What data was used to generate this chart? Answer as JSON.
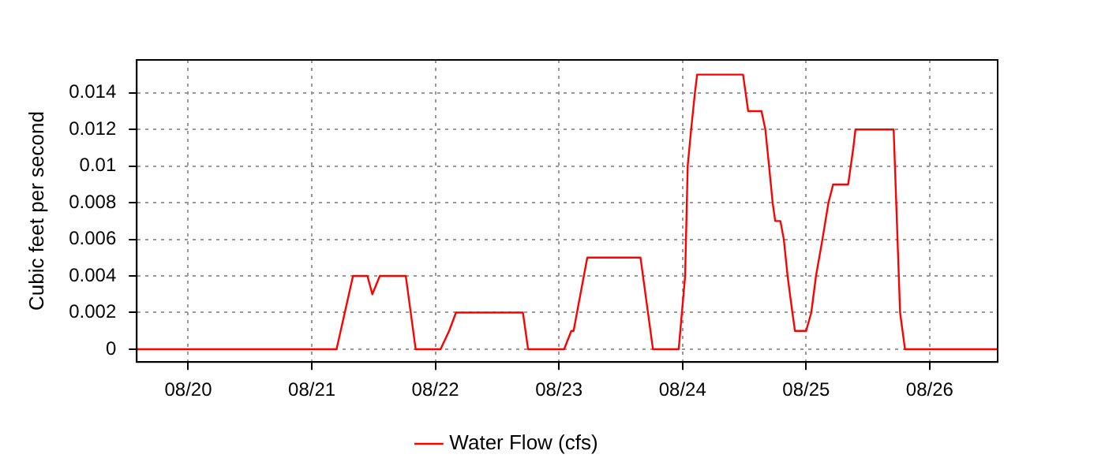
{
  "chart_data": {
    "type": "line",
    "ylabel": "Cubic feet per second",
    "x": [
      "--08-19T14:00",
      "--08-21T04:48",
      "--08-21T08:00",
      "--08-21T10:48",
      "--08-21T11:45",
      "--08-21T13:12",
      "--08-21T18:15",
      "--08-21T20:10",
      "--08-22T01:00",
      "--08-22T02:40",
      "--08-22T04:00",
      "--08-22T17:00",
      "--08-22T18:00",
      "--08-23T01:00",
      "--08-23T02:24",
      "--08-23T02:50",
      "--08-23T05:30",
      "--08-23T15:50",
      "--08-23T18:15",
      "--08-23T23:15",
      "--08-24T00:30",
      "--08-24T01:00",
      "--08-24T01:40",
      "--08-24T02:24",
      "--08-24T02:50",
      "--08-24T11:45",
      "--08-24T12:45",
      "--08-24T15:20",
      "--08-24T16:05",
      "--08-24T16:48",
      "--08-24T17:30",
      "--08-24T18:00",
      "--08-24T19:00",
      "--08-24T19:40",
      "--08-24T20:24",
      "--08-24T21:20",
      "--08-24T21:50",
      "--08-25T00:00",
      "--08-25T01:00",
      "--08-25T01:55",
      "--08-25T03:10",
      "--08-25T04:20",
      "--08-25T05:15",
      "--08-25T08:10",
      "--08-25T09:10",
      "--08-25T09:35",
      "--08-25T17:00",
      "--08-25T17:30",
      "--08-25T18:15",
      "--08-25T19:12",
      "--08-26T13:12"
    ],
    "series": [
      {
        "name": "Water Flow (cfs)",
        "color": "#ff0000",
        "values": [
          0,
          0,
          0.004,
          0.004,
          0.003,
          0.004,
          0.004,
          0,
          0,
          0.001,
          0.002,
          0.002,
          0,
          0,
          0.001,
          0.001,
          0.005,
          0.005,
          0,
          0,
          0.004,
          0.01,
          0.012,
          0.014,
          0.015,
          0.015,
          0.013,
          0.013,
          0.012,
          0.01,
          0.008,
          0.007,
          0.007,
          0.006,
          0.004,
          0.002,
          0.001,
          0.001,
          0.002,
          0.004,
          0.006,
          0.008,
          0.009,
          0.009,
          0.011,
          0.012,
          0.012,
          0.008,
          0.002,
          0,
          0
        ]
      }
    ],
    "xlim": [
      "--08-19T14:00",
      "--08-26T13:12"
    ],
    "xticks": [
      {
        "value": "--08-20",
        "label": "08/20"
      },
      {
        "value": "--08-21",
        "label": "08/21"
      },
      {
        "value": "--08-22",
        "label": "08/22"
      },
      {
        "value": "--08-23",
        "label": "08/23"
      },
      {
        "value": "--08-24",
        "label": "08/24"
      },
      {
        "value": "--08-25",
        "label": "08/25"
      },
      {
        "value": "--08-26",
        "label": "08/26"
      }
    ],
    "ylim": [
      -0.0007,
      0.0158
    ],
    "yticks": [
      0,
      0.002,
      0.004,
      0.006,
      0.008,
      0.01,
      0.012,
      0.014
    ],
    "grid": true,
    "legend": "bottom",
    "marker": "none",
    "line_style": "solid"
  }
}
